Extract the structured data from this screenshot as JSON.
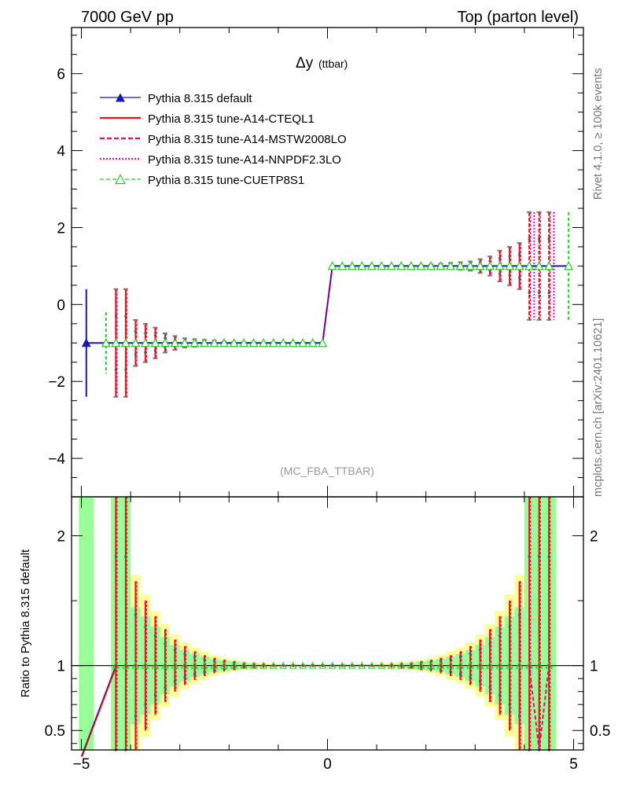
{
  "header": {
    "left": "7000 GeV pp",
    "right": "Top (parton level)"
  },
  "side_labels": {
    "rivet": "Rivet 4.1.0, ≥ 100k events",
    "mcplots": "mcplots.cern.ch [arXiv:2401.10621]"
  },
  "chart_data": [
    {
      "type": "line",
      "panel": "main",
      "title": "Δy",
      "title_sub": "(ttbar)",
      "watermark": "(MC_FBA_TTBAR)",
      "xlim": [
        -5.2,
        5.2
      ],
      "ylim": [
        -5,
        7.2
      ],
      "x_ticks": [
        -5,
        0,
        5
      ],
      "x_tick_labels": [
        "−5",
        "0",
        "5"
      ],
      "y_ticks": [
        -4,
        -2,
        0,
        2,
        4,
        6
      ],
      "y_tick_labels": [
        "−4",
        "−2",
        "0",
        "2",
        "4",
        "6"
      ],
      "legend_position": "top-left",
      "series": [
        {
          "name": "Pythia 8.315 default",
          "color": "#1a1aa8",
          "style": "solid",
          "marker": "triangle-filled"
        },
        {
          "name": "Pythia 8.315 tune-A14-CTEQL1",
          "color": "#ee1111",
          "style": "solid",
          "marker": "none"
        },
        {
          "name": "Pythia 8.315 tune-A14-MSTW2008LO",
          "color": "#ff0077",
          "style": "dashed",
          "marker": "none"
        },
        {
          "name": "Pythia 8.315 tune-A14-NNPDF2.3LO",
          "color": "#dd00dd",
          "style": "dotted",
          "marker": "none"
        },
        {
          "name": "Pythia 8.315 tune-CUETP8S1",
          "color": "#22cc22",
          "style": "dashed",
          "marker": "triangle-open"
        }
      ],
      "bins_x": [
        -4.9,
        -4.5,
        -4.3,
        -4.1,
        -3.9,
        -3.7,
        -3.5,
        -3.3,
        -3.1,
        -2.9,
        -2.7,
        -2.5,
        -2.3,
        -2.1,
        -1.9,
        -1.7,
        -1.5,
        -1.3,
        -1.1,
        -0.9,
        -0.7,
        -0.5,
        -0.3,
        -0.1,
        0.1,
        0.3,
        0.5,
        0.7,
        0.9,
        1.1,
        1.3,
        1.5,
        1.7,
        1.9,
        2.1,
        2.3,
        2.5,
        2.7,
        2.9,
        3.1,
        3.3,
        3.5,
        3.7,
        3.9,
        4.1,
        4.3,
        4.5,
        4.9
      ],
      "values": [
        -1,
        -1,
        -1,
        -1,
        -1,
        -1,
        -1,
        -1,
        -1,
        -1,
        -1,
        -1,
        -1,
        -1,
        -1,
        -1,
        -1,
        -1,
        -1,
        -1,
        -1,
        -1,
        -1,
        -1,
        1,
        1,
        1,
        1,
        1,
        1,
        1,
        1,
        1,
        1,
        1,
        1,
        1,
        1,
        1,
        1,
        1,
        1,
        1,
        1,
        1,
        1,
        1,
        1
      ],
      "errors": [
        1.4,
        0.8,
        1.4,
        1.4,
        0.6,
        0.5,
        0.4,
        0.25,
        0.18,
        0.12,
        0.1,
        0.08,
        0.06,
        0.04,
        0.03,
        0.02,
        0.02,
        0.01,
        0.01,
        0.01,
        0.01,
        0.01,
        0.01,
        0.01,
        0.01,
        0.01,
        0.01,
        0.01,
        0.01,
        0.01,
        0.01,
        0.02,
        0.02,
        0.03,
        0.04,
        0.06,
        0.08,
        0.1,
        0.12,
        0.18,
        0.25,
        0.4,
        0.5,
        0.6,
        1.4,
        1.4,
        1.4,
        1.4
      ]
    },
    {
      "type": "line",
      "panel": "ratio",
      "ylabel": "Ratio to Pythia 8.315 default",
      "xlim": [
        -5.2,
        5.2
      ],
      "ylim": [
        0.35,
        2.3
      ],
      "y_ticks": [
        0.5,
        1,
        2
      ],
      "y_tick_labels": [
        "0.5",
        "1",
        "2"
      ],
      "band_x": [
        -4.9,
        -4.3,
        -4.1,
        -3.9,
        -3.7,
        -3.5,
        -3.3,
        -3.1,
        -2.9,
        -2.7,
        -2.5,
        -2.3,
        -2.1,
        -1.9,
        -1.7,
        -1.5,
        -1.3,
        -1.1,
        -0.9,
        -0.7,
        -0.5,
        -0.3,
        -0.1,
        0.1,
        0.3,
        0.5,
        0.7,
        0.9,
        1.1,
        1.3,
        1.5,
        1.7,
        1.9,
        2.1,
        2.3,
        2.5,
        2.7,
        2.9,
        3.1,
        3.3,
        3.5,
        3.7,
        3.9,
        4.1,
        4.3,
        4.5
      ],
      "band_green": [
        1.4,
        1.4,
        1.4,
        0.45,
        0.38,
        0.3,
        0.22,
        0.16,
        0.12,
        0.09,
        0.07,
        0.05,
        0.04,
        0.03,
        0.02,
        0.015,
        0.01,
        0.01,
        0.01,
        0.01,
        0.01,
        0.01,
        0.01,
        0.01,
        0.01,
        0.01,
        0.01,
        0.01,
        0.01,
        0.01,
        0.015,
        0.02,
        0.03,
        0.04,
        0.05,
        0.07,
        0.09,
        0.12,
        0.16,
        0.22,
        0.3,
        0.38,
        0.45,
        1.4,
        1.4,
        1.4
      ],
      "band_yellow": [
        1.4,
        1.4,
        1.4,
        0.7,
        0.55,
        0.42,
        0.32,
        0.24,
        0.18,
        0.14,
        0.11,
        0.08,
        0.06,
        0.045,
        0.035,
        0.025,
        0.02,
        0.015,
        0.01,
        0.01,
        0.01,
        0.01,
        0.01,
        0.01,
        0.01,
        0.01,
        0.01,
        0.01,
        0.015,
        0.02,
        0.025,
        0.035,
        0.045,
        0.06,
        0.08,
        0.11,
        0.14,
        0.18,
        0.24,
        0.32,
        0.42,
        0.55,
        0.7,
        1.4,
        1.4,
        1.4
      ],
      "ratio_x": [
        -4.3,
        -4.1,
        -3.9,
        -3.7,
        -3.5,
        -3.3,
        -3.1,
        -2.9,
        -2.7,
        -2.5,
        -2.3,
        -2.1,
        -1.9,
        -1.7,
        -1.5,
        -1.3,
        -1.1,
        -0.9,
        -0.7,
        -0.5,
        -0.3,
        -0.1,
        0.1,
        0.3,
        0.5,
        0.7,
        0.9,
        1.1,
        1.3,
        1.5,
        1.7,
        1.9,
        2.1,
        2.3,
        2.5,
        2.7,
        2.9,
        3.1,
        3.3,
        3.5,
        3.7,
        3.9,
        4.1,
        4.3,
        4.5
      ],
      "ratio_values": [
        1,
        1,
        1,
        1,
        1,
        1,
        1,
        1,
        1,
        1,
        1,
        1,
        1,
        1,
        1,
        1,
        1,
        1,
        1,
        1,
        1,
        1,
        1,
        1,
        1,
        1,
        1,
        1,
        1,
        1,
        1,
        1,
        1,
        1,
        1,
        1,
        1,
        1,
        1,
        1,
        1,
        1,
        1,
        1,
        1
      ],
      "ratio_errors": [
        1.4,
        1.4,
        0.65,
        0.5,
        0.38,
        0.28,
        0.2,
        0.15,
        0.11,
        0.08,
        0.06,
        0.045,
        0.035,
        0.025,
        0.02,
        0.015,
        0.01,
        0.01,
        0.01,
        0.01,
        0.01,
        0.01,
        0.01,
        0.01,
        0.01,
        0.01,
        0.01,
        0.01,
        0.015,
        0.02,
        0.025,
        0.035,
        0.045,
        0.06,
        0.08,
        0.11,
        0.15,
        0.2,
        0.28,
        0.38,
        0.5,
        0.65,
        1.4,
        1.4,
        1.4
      ],
      "ratio_line_x": [
        -5.0,
        -4.3
      ],
      "ratio_line_y": [
        0.3,
        1.0
      ]
    }
  ]
}
